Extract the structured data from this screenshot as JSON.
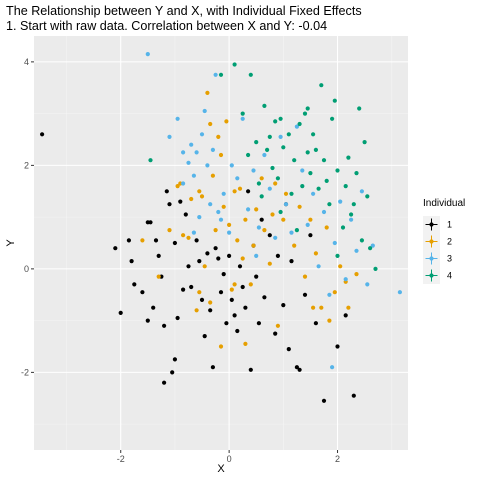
{
  "chart_data": {
    "type": "scatter",
    "title": "The Relationship between Y and X, with Individual Fixed Effects",
    "subtitle": "1. Start with raw data. Correlation between X and Y: -0.04",
    "xlabel": "X",
    "ylabel": "Y",
    "xlim": [
      -3.6,
      3.3
    ],
    "ylim": [
      -3.5,
      4.5
    ],
    "x_ticks": [
      -2,
      0,
      2
    ],
    "y_ticks": [
      -2,
      0,
      2,
      4
    ],
    "grid": true,
    "legend_position": "right",
    "legend_title": "Individual",
    "series": [
      {
        "name": "1",
        "color": "#000000",
        "points": [
          [
            -3.45,
            2.6
          ],
          [
            -2.0,
            -0.85
          ],
          [
            -2.1,
            0.4
          ],
          [
            -1.85,
            0.55
          ],
          [
            -1.8,
            0.15
          ],
          [
            -1.75,
            -0.3
          ],
          [
            -1.6,
            -0.45
          ],
          [
            -1.5,
            -1.0
          ],
          [
            -1.5,
            0.9
          ],
          [
            -1.45,
            0.9
          ],
          [
            -1.4,
            -0.75
          ],
          [
            -1.35,
            0.55
          ],
          [
            -1.3,
            0.25
          ],
          [
            -1.25,
            -0.15
          ],
          [
            -1.2,
            -1.1
          ],
          [
            -1.15,
            1.5
          ],
          [
            -1.1,
            1.25
          ],
          [
            -1.05,
            -2.0
          ],
          [
            -1.0,
            -1.75
          ],
          [
            -1.0,
            0.5
          ],
          [
            -0.95,
            -0.95
          ],
          [
            -0.9,
            1.3
          ],
          [
            -0.8,
            1.05
          ],
          [
            -0.75,
            0.05
          ],
          [
            -0.7,
            -0.35
          ],
          [
            -0.6,
            0.55
          ],
          [
            -0.55,
            0.15
          ],
          [
            -0.5,
            -0.6
          ],
          [
            -0.45,
            -1.3
          ],
          [
            -0.4,
            0.3
          ],
          [
            -0.35,
            -0.8
          ],
          [
            -0.3,
            -1.9
          ],
          [
            -0.25,
            0.4
          ],
          [
            -0.2,
            0.2
          ],
          [
            -0.15,
            -0.45
          ],
          [
            -0.1,
            -0.1
          ],
          [
            -0.05,
            -1.05
          ],
          [
            0.0,
            0.25
          ],
          [
            0.05,
            -0.6
          ],
          [
            0.1,
            -0.9
          ],
          [
            0.15,
            -1.2
          ],
          [
            0.2,
            0.05
          ],
          [
            0.25,
            -0.35
          ],
          [
            0.3,
            -0.75
          ],
          [
            0.35,
            1.5
          ],
          [
            0.4,
            -1.95
          ],
          [
            0.45,
            0.45
          ],
          [
            0.5,
            -0.15
          ],
          [
            0.55,
            -1.05
          ],
          [
            0.65,
            -0.55
          ],
          [
            0.75,
            0.65
          ],
          [
            0.85,
            -1.25
          ],
          [
            0.9,
            0.25
          ],
          [
            1.0,
            -0.7
          ],
          [
            1.05,
            1.25
          ],
          [
            1.1,
            -1.55
          ],
          [
            1.15,
            0.15
          ],
          [
            1.25,
            -1.9
          ],
          [
            1.4,
            -0.5
          ],
          [
            1.5,
            0.65
          ],
          [
            1.6,
            -1.05
          ],
          [
            1.75,
            -2.55
          ],
          [
            2.0,
            -1.5
          ],
          [
            2.15,
            -0.9
          ],
          [
            2.3,
            -2.45
          ],
          [
            -1.2,
            -2.2
          ],
          [
            -0.85,
            -0.4
          ],
          [
            0.6,
            0.95
          ],
          [
            1.3,
            -1.95
          ]
        ]
      },
      {
        "name": "2",
        "color": "#E69F00",
        "points": [
          [
            -1.6,
            0.55
          ],
          [
            -1.3,
            -0.15
          ],
          [
            -1.1,
            0.75
          ],
          [
            -0.95,
            1.6
          ],
          [
            -0.9,
            1.65
          ],
          [
            -0.85,
            0.65
          ],
          [
            -0.75,
            0.6
          ],
          [
            -0.7,
            1.35
          ],
          [
            -0.6,
            -0.8
          ],
          [
            -0.55,
            -0.45
          ],
          [
            -0.5,
            1.4
          ],
          [
            -0.45,
            0.05
          ],
          [
            -0.4,
            3.4
          ],
          [
            -0.35,
            2.8
          ],
          [
            -0.3,
            1.8
          ],
          [
            -0.25,
            0.75
          ],
          [
            -0.2,
            2.55
          ],
          [
            -0.15,
            2.2
          ],
          [
            -0.1,
            1.2
          ],
          [
            -0.05,
            2.85
          ],
          [
            0.0,
            0.85
          ],
          [
            0.05,
            -0.4
          ],
          [
            0.1,
            1.5
          ],
          [
            0.15,
            0.55
          ],
          [
            0.2,
            1.55
          ],
          [
            0.25,
            0.2
          ],
          [
            0.3,
            0.95
          ],
          [
            0.4,
            -0.3
          ],
          [
            0.45,
            0.45
          ],
          [
            0.5,
            1.15
          ],
          [
            0.6,
            1.75
          ],
          [
            0.65,
            0.75
          ],
          [
            0.75,
            0.1
          ],
          [
            0.8,
            1.05
          ],
          [
            0.85,
            1.65
          ],
          [
            0.9,
            -1.1
          ],
          [
            1.0,
            0.95
          ],
          [
            1.05,
            1.45
          ],
          [
            1.2,
            0.45
          ],
          [
            1.3,
            1.2
          ],
          [
            1.4,
            -0.15
          ],
          [
            1.5,
            0.95
          ],
          [
            1.55,
            -0.75
          ],
          [
            1.6,
            0.3
          ],
          [
            1.7,
            -0.75
          ],
          [
            1.8,
            0.8
          ],
          [
            1.85,
            -1.0
          ],
          [
            1.95,
            -0.45
          ],
          [
            2.05,
            0.05
          ],
          [
            2.15,
            -0.25
          ],
          [
            2.2,
            -0.75
          ],
          [
            2.35,
            -0.1
          ],
          [
            -0.35,
            -0.65
          ],
          [
            -0.55,
            1.5
          ],
          [
            0.1,
            -0.3
          ],
          [
            0.3,
            -1.45
          ],
          [
            -0.15,
            -1.5
          ]
        ]
      },
      {
        "name": "3",
        "color": "#56B4E9",
        "points": [
          [
            -1.5,
            4.15
          ],
          [
            -1.1,
            2.55
          ],
          [
            -0.95,
            2.9
          ],
          [
            -0.85,
            2.25
          ],
          [
            -0.75,
            2.05
          ],
          [
            -0.7,
            2.4
          ],
          [
            -0.65,
            0.7
          ],
          [
            -0.6,
            2.25
          ],
          [
            -0.55,
            1.0
          ],
          [
            -0.5,
            2.6
          ],
          [
            -0.45,
            3.05
          ],
          [
            -0.4,
            2.0
          ],
          [
            -0.35,
            1.25
          ],
          [
            -0.3,
            2.3
          ],
          [
            -0.25,
            3.75
          ],
          [
            -0.2,
            1.1
          ],
          [
            -0.15,
            0.95
          ],
          [
            -0.1,
            1.45
          ],
          [
            0.0,
            0.7
          ],
          [
            0.05,
            2.0
          ],
          [
            0.15,
            1.75
          ],
          [
            0.25,
            2.9
          ],
          [
            0.35,
            1.15
          ],
          [
            0.45,
            1.9
          ],
          [
            0.55,
            0.8
          ],
          [
            0.65,
            2.2
          ],
          [
            0.75,
            1.55
          ],
          [
            0.85,
            0.6
          ],
          [
            0.95,
            2.55
          ],
          [
            1.05,
            1.25
          ],
          [
            1.15,
            0.7
          ],
          [
            1.25,
            2.75
          ],
          [
            1.35,
            1.9
          ],
          [
            1.45,
            0.85
          ],
          [
            1.55,
            1.45
          ],
          [
            1.65,
            0.05
          ],
          [
            1.75,
            1.1
          ],
          [
            1.85,
            -0.5
          ],
          [
            1.95,
            0.5
          ],
          [
            2.05,
            1.3
          ],
          [
            2.15,
            -0.2
          ],
          [
            2.25,
            0.95
          ],
          [
            2.35,
            0.35
          ],
          [
            2.45,
            1.5
          ],
          [
            2.55,
            -0.3
          ],
          [
            3.15,
            -0.45
          ],
          [
            -0.85,
            1.65
          ],
          [
            0.5,
            0.25
          ],
          [
            2.65,
            0.45
          ],
          [
            1.9,
            -1.9
          ],
          [
            -0.65,
            1.8
          ]
        ]
      },
      {
        "name": "4",
        "color": "#009E73",
        "points": [
          [
            -1.45,
            2.1
          ],
          [
            -0.15,
            3.75
          ],
          [
            0.1,
            3.95
          ],
          [
            0.25,
            3.0
          ],
          [
            0.35,
            2.2
          ],
          [
            0.4,
            3.75
          ],
          [
            0.5,
            2.45
          ],
          [
            0.55,
            1.65
          ],
          [
            0.6,
            1.4
          ],
          [
            0.65,
            3.15
          ],
          [
            0.7,
            2.3
          ],
          [
            0.75,
            2.55
          ],
          [
            0.8,
            1.95
          ],
          [
            0.85,
            2.85
          ],
          [
            0.9,
            1.75
          ],
          [
            0.95,
            2.9
          ],
          [
            1.0,
            2.35
          ],
          [
            1.1,
            2.6
          ],
          [
            1.15,
            1.45
          ],
          [
            1.2,
            2.1
          ],
          [
            1.3,
            2.8
          ],
          [
            1.35,
            1.6
          ],
          [
            1.4,
            3.0
          ],
          [
            1.45,
            2.25
          ],
          [
            1.5,
            1.85
          ],
          [
            1.55,
            2.6
          ],
          [
            1.6,
            2.3
          ],
          [
            1.65,
            1.55
          ],
          [
            1.7,
            3.55
          ],
          [
            1.75,
            2.1
          ],
          [
            1.8,
            1.7
          ],
          [
            1.85,
            1.25
          ],
          [
            1.9,
            2.9
          ],
          [
            1.95,
            3.25
          ],
          [
            2.0,
            1.9
          ],
          [
            2.1,
            0.8
          ],
          [
            2.15,
            1.6
          ],
          [
            2.2,
            2.15
          ],
          [
            2.25,
            1.05
          ],
          [
            2.35,
            1.85
          ],
          [
            2.4,
            3.1
          ],
          [
            2.45,
            0.55
          ],
          [
            2.5,
            2.45
          ],
          [
            2.55,
            1.4
          ],
          [
            2.6,
            0.4
          ],
          [
            2.7,
            0.0
          ],
          [
            1.25,
            0.75
          ],
          [
            0.95,
            1.1
          ],
          [
            2.0,
            0.25
          ],
          [
            2.3,
            1.25
          ],
          [
            1.45,
            3.1
          ]
        ]
      }
    ]
  }
}
